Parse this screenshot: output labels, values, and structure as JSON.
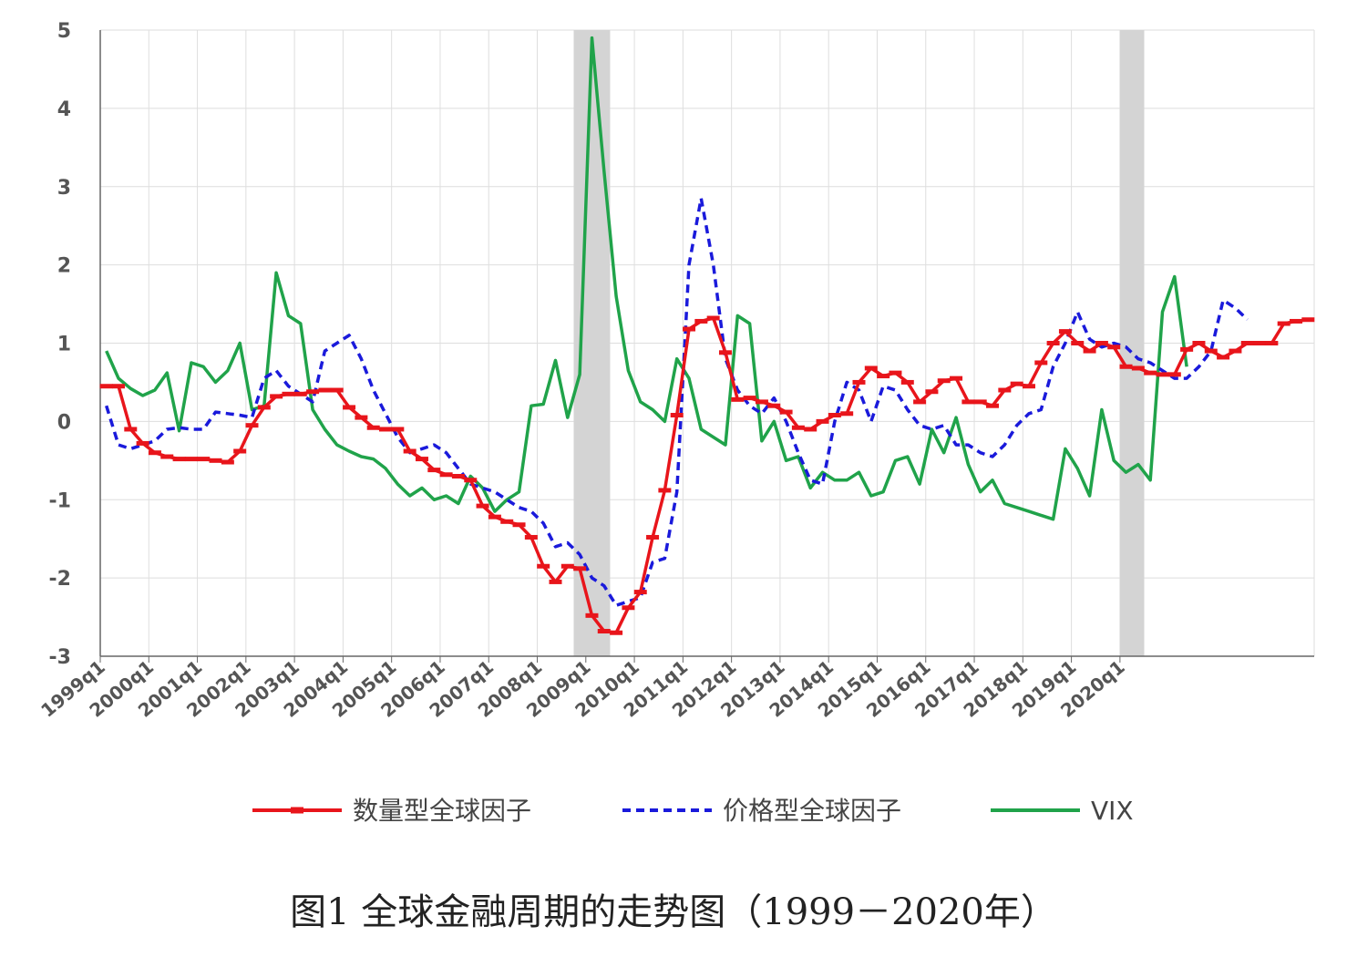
{
  "caption": "图1  全球金融周期的走势图（1999－2020年）",
  "chart_data": {
    "type": "line",
    "ylim": [
      -3,
      5
    ],
    "y_ticks": [
      5,
      4,
      3,
      2,
      1,
      0,
      -1,
      -2,
      -3
    ],
    "x_tick_labels": [
      "1999q1",
      "2000q1",
      "2001q1",
      "2002q1",
      "2003q1",
      "2004q1",
      "2005q1",
      "2006q1",
      "2007q1",
      "2008q1",
      "2009q1",
      "2010q1",
      "2011q1",
      "2012q1",
      "2013q1",
      "2014q1",
      "2015q1",
      "2016q1",
      "2017q1",
      "2018q1",
      "2019q1",
      "2020q1"
    ],
    "grid": true,
    "legend_position": "bottom",
    "shaded_periods": [
      {
        "start": "2008q4",
        "end": "2009q2"
      },
      {
        "start": "2020q1",
        "end": "2020q2"
      }
    ],
    "series": [
      {
        "name": "数量型全球因子",
        "color": "#e8151b",
        "style": "solid-marker",
        "values": [
          0.45,
          0.45,
          -0.1,
          -0.28,
          -0.4,
          -0.45,
          -0.48,
          -0.48,
          -0.48,
          -0.5,
          -0.52,
          -0.38,
          -0.05,
          0.18,
          0.32,
          0.35,
          0.35,
          0.38,
          0.4,
          0.4,
          0.18,
          0.05,
          -0.08,
          -0.1,
          -0.1,
          -0.38,
          -0.48,
          -0.62,
          -0.68,
          -0.7,
          -0.75,
          -1.08,
          -1.22,
          -1.28,
          -1.32,
          -1.48,
          -1.85,
          -2.05,
          -1.85,
          -1.88,
          -2.48,
          -2.68,
          -2.7,
          -2.38,
          -2.18,
          -1.48,
          -0.88,
          0.08,
          1.18,
          1.28,
          1.32,
          0.88,
          0.28,
          0.3,
          0.25,
          0.2,
          0.12,
          -0.08,
          -0.1,
          0.0,
          0.08,
          0.1,
          0.5,
          0.68,
          0.58,
          0.62,
          0.5,
          0.25,
          0.38,
          0.52,
          0.55,
          0.25,
          0.25,
          0.2,
          0.4,
          0.48,
          0.45,
          0.75,
          1.0,
          1.15,
          1.0,
          0.9,
          1.0,
          0.95,
          0.7,
          0.68,
          0.62,
          0.6,
          0.6,
          0.92,
          1.0,
          0.9,
          0.82,
          0.9,
          1.0,
          1.0,
          1.0,
          1.25,
          1.28,
          1.3
        ]
      },
      {
        "name": "价格型全球因子",
        "color": "#1a1adb",
        "style": "dashed",
        "values": [
          0.2,
          -0.3,
          -0.35,
          -0.3,
          -0.25,
          -0.1,
          -0.08,
          -0.1,
          -0.1,
          0.12,
          0.1,
          0.08,
          0.05,
          0.55,
          0.65,
          0.45,
          0.35,
          0.25,
          0.9,
          1.0,
          1.1,
          0.8,
          0.4,
          0.1,
          -0.2,
          -0.4,
          -0.35,
          -0.3,
          -0.4,
          -0.6,
          -0.8,
          -0.85,
          -0.9,
          -1.0,
          -1.1,
          -1.15,
          -1.3,
          -1.6,
          -1.55,
          -1.7,
          -2.0,
          -2.1,
          -2.35,
          -2.3,
          -2.25,
          -1.8,
          -1.75,
          -0.9,
          2.0,
          2.85,
          2.0,
          0.8,
          0.4,
          0.2,
          0.1,
          0.3,
          0.0,
          -0.4,
          -0.75,
          -0.8,
          0.0,
          0.5,
          0.4,
          0.0,
          0.45,
          0.4,
          0.15,
          -0.05,
          -0.1,
          -0.05,
          -0.3,
          -0.3,
          -0.4,
          -0.45,
          -0.3,
          -0.05,
          0.1,
          0.15,
          0.7,
          1.0,
          1.4,
          1.05,
          0.95,
          1.0,
          0.95,
          0.8,
          0.75,
          0.65,
          0.55,
          0.55,
          0.7,
          0.9,
          1.55,
          1.45,
          1.3
        ]
      },
      {
        "name": "VIX",
        "color": "#20a34a",
        "style": "solid",
        "values": [
          0.9,
          0.55,
          0.42,
          0.33,
          0.4,
          0.62,
          -0.12,
          0.75,
          0.7,
          0.5,
          0.65,
          1.0,
          0.15,
          0.2,
          1.9,
          1.35,
          1.25,
          0.15,
          -0.1,
          -0.3,
          -0.38,
          -0.45,
          -0.48,
          -0.6,
          -0.8,
          -0.95,
          -0.85,
          -1.0,
          -0.95,
          -1.05,
          -0.7,
          -0.85,
          -1.15,
          -1.0,
          -0.9,
          0.2,
          0.22,
          0.78,
          0.05,
          0.6,
          4.9,
          3.2,
          1.6,
          0.65,
          0.25,
          0.15,
          0.0,
          0.8,
          0.55,
          -0.1,
          -0.2,
          -0.3,
          1.35,
          1.25,
          -0.25,
          0.0,
          -0.5,
          -0.45,
          -0.85,
          -0.65,
          -0.75,
          -0.75,
          -0.65,
          -0.95,
          -0.9,
          -0.5,
          -0.45,
          -0.8,
          -0.1,
          -0.4,
          0.05,
          -0.55,
          -0.9,
          -0.75,
          -1.05,
          -1.1,
          -1.15,
          -1.2,
          -1.25,
          -0.35,
          -0.6,
          -0.95,
          0.15,
          -0.5,
          -0.65,
          -0.55,
          -0.75,
          1.4,
          1.85,
          0.7
        ]
      }
    ]
  }
}
